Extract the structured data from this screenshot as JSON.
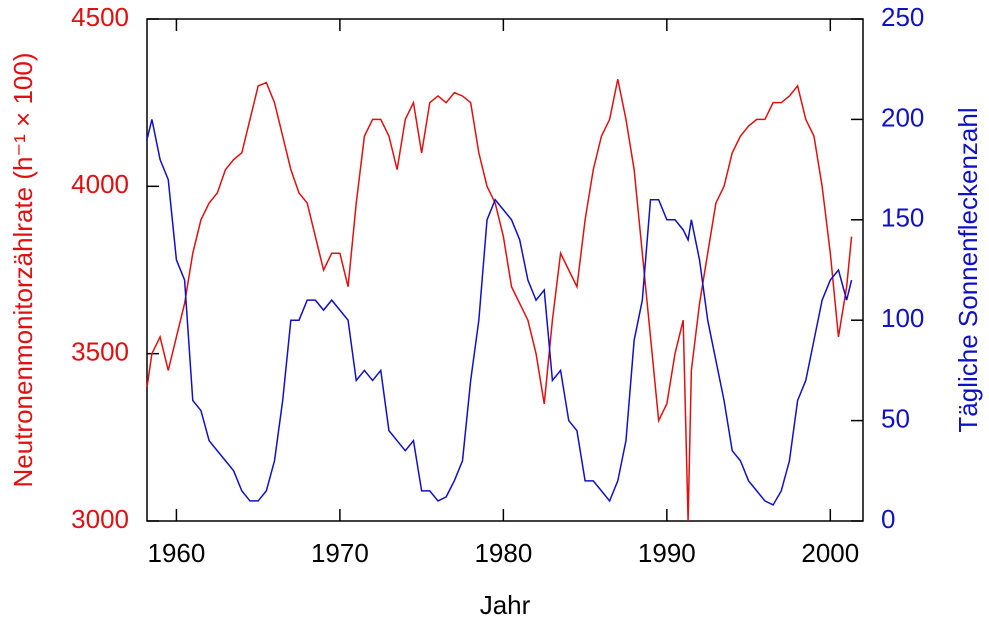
{
  "chart_data": {
    "type": "line",
    "xlabel": "Jahr",
    "ylabel": "Neutronenmonitorzählrate (h⁻¹ × 100)",
    "y2label": "Tägliche Sonnenfleckenzahl",
    "xlim": [
      1958.2,
      2002
    ],
    "xticks": [
      1960,
      1970,
      1980,
      1990,
      2000
    ],
    "ylim": [
      3000,
      4500
    ],
    "yticks": [
      3000,
      3500,
      4000,
      4500
    ],
    "y2lim": [
      0,
      250
    ],
    "y2ticks": [
      0,
      50,
      100,
      150,
      200,
      250
    ],
    "x": [
      1958.2,
      1958.5,
      1959,
      1959.5,
      1960,
      1960.5,
      1961,
      1961.5,
      1962,
      1962.5,
      1963,
      1963.5,
      1964,
      1964.5,
      1965,
      1965.5,
      1966,
      1966.5,
      1967,
      1967.5,
      1968,
      1968.5,
      1969,
      1969.5,
      1970,
      1970.5,
      1971,
      1971.5,
      1972,
      1972.5,
      1973,
      1973.5,
      1974,
      1974.5,
      1975,
      1975.5,
      1976,
      1976.5,
      1977,
      1977.5,
      1978,
      1978.5,
      1979,
      1979.5,
      1980,
      1980.5,
      1981,
      1981.5,
      1982,
      1982.5,
      1983,
      1983.5,
      1984,
      1984.5,
      1985,
      1985.5,
      1986,
      1986.5,
      1987,
      1987.5,
      1988,
      1988.5,
      1989,
      1989.5,
      1990,
      1990.5,
      1991,
      1991.3,
      1991.5,
      1992,
      1992.5,
      1993,
      1993.5,
      1994,
      1994.5,
      1995,
      1995.5,
      1996,
      1996.5,
      1997,
      1997.5,
      1998,
      1998.5,
      1999,
      1999.5,
      2000,
      2000.5,
      2001,
      2001.3
    ],
    "series": [
      {
        "name": "Neutronenmonitorzählrate",
        "color": "#e01010",
        "axis": "y",
        "values": [
          3400,
          3500,
          3550,
          3450,
          3550,
          3650,
          3800,
          3900,
          3950,
          3980,
          4050,
          4080,
          4100,
          4200,
          4300,
          4310,
          4250,
          4150,
          4050,
          3980,
          3950,
          3850,
          3750,
          3800,
          3800,
          3700,
          3950,
          4150,
          4200,
          4200,
          4150,
          4050,
          4200,
          4250,
          4100,
          4250,
          4270,
          4250,
          4280,
          4270,
          4250,
          4100,
          4000,
          3950,
          3850,
          3700,
          3650,
          3600,
          3500,
          3350,
          3600,
          3800,
          3750,
          3700,
          3900,
          4050,
          4150,
          4200,
          4320,
          4200,
          4050,
          3800,
          3550,
          3300,
          3350,
          3500,
          3600,
          3000,
          3450,
          3650,
          3800,
          3950,
          4000,
          4100,
          4150,
          4180,
          4200,
          4200,
          4250,
          4250,
          4270,
          4300,
          4200,
          4150,
          4000,
          3800,
          3550,
          3700,
          3850
        ]
      },
      {
        "name": "Tägliche Sonnenfleckenzahl",
        "color": "#1010c8",
        "axis": "y2",
        "values": [
          190,
          200,
          180,
          170,
          130,
          120,
          60,
          55,
          40,
          35,
          30,
          25,
          15,
          10,
          10,
          15,
          30,
          60,
          100,
          100,
          110,
          110,
          105,
          110,
          105,
          100,
          70,
          75,
          70,
          75,
          45,
          40,
          35,
          40,
          15,
          15,
          10,
          12,
          20,
          30,
          70,
          100,
          150,
          160,
          155,
          150,
          140,
          120,
          110,
          115,
          70,
          75,
          50,
          45,
          20,
          20,
          15,
          10,
          20,
          40,
          90,
          110,
          160,
          160,
          150,
          150,
          145,
          140,
          150,
          130,
          100,
          80,
          60,
          35,
          30,
          20,
          15,
          10,
          8,
          15,
          30,
          60,
          70,
          90,
          110,
          120,
          125,
          110,
          120
        ]
      }
    ]
  }
}
